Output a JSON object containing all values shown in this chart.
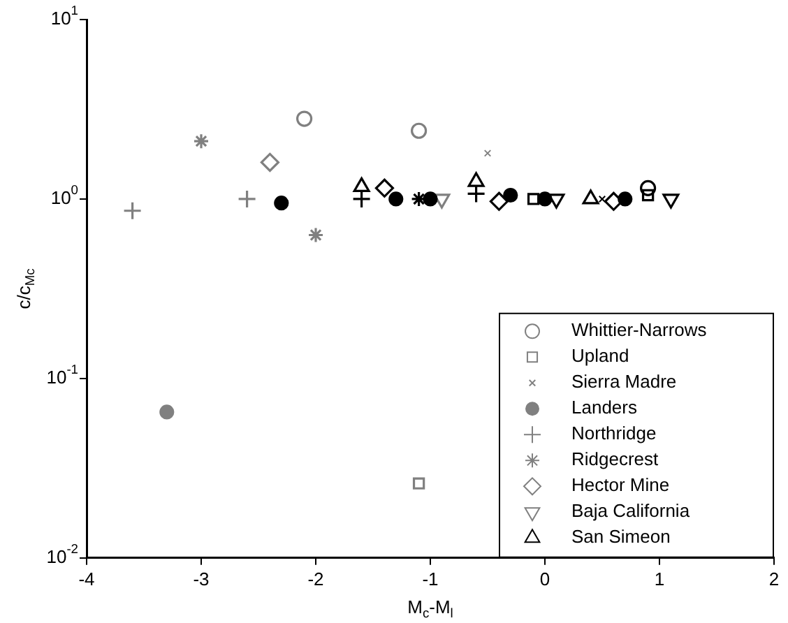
{
  "chart_data": {
    "type": "scatter",
    "xlabel": "M$_{c}$-M$_{l}$",
    "ylabel": "c/c$_{Mc}$",
    "log": "y",
    "xlim": [
      -4,
      2
    ],
    "xticks": [
      -4,
      -3,
      -2,
      -1,
      0,
      1,
      2
    ],
    "ylim": [
      0.01,
      10
    ],
    "yticks": [
      {
        "value": 0.01,
        "label": "10$^{-2}$"
      },
      {
        "value": 0.1,
        "label": "10$^{-1}$"
      },
      {
        "value": 1,
        "label": "10$^{0}$"
      },
      {
        "value": 10,
        "label": "10$^{1}$"
      }
    ],
    "grid": false,
    "legend": "bottom right",
    "series": [
      {
        "name": "Whittier-Narrows",
        "color": "#808080",
        "marker": "circle",
        "x": [
          -2.1,
          -1.1,
          0.9
        ],
        "values": [
          2.8,
          2.4,
          1.15
        ],
        "colors": [
          "#808080",
          "#808080",
          "#000000"
        ]
      },
      {
        "name": "Upland",
        "color": "#808080",
        "marker": "square",
        "x": [
          -1.1,
          -0.1,
          0.9
        ],
        "values": [
          0.026,
          1.0,
          1.05
        ],
        "colors": [
          "#808080",
          "#000000",
          "#000000"
        ]
      },
      {
        "name": "Sierra Madre",
        "color": "#808080",
        "marker": "x",
        "x": [
          -0.5,
          0.5
        ],
        "values": [
          1.8,
          1.0
        ],
        "colors": [
          "#808080",
          "#000000"
        ]
      },
      {
        "name": "Landers",
        "color": "#808080",
        "marker": "filled-circle",
        "x": [
          -3.3,
          -2.3,
          -1.3,
          -1.0,
          -0.3,
          0.0,
          0.7
        ],
        "values": [
          0.065,
          0.95,
          1.0,
          1.0,
          1.05,
          1.0,
          1.0
        ],
        "colors": [
          "#808080",
          "#000000",
          "#000000",
          "#000000",
          "#000000",
          "#000000",
          "#000000"
        ]
      },
      {
        "name": "Northridge",
        "color": "#808080",
        "marker": "cross",
        "x": [
          -3.6,
          -2.6,
          -1.6,
          -0.6
        ],
        "values": [
          0.86,
          1.0,
          1.0,
          1.07
        ],
        "colors": [
          "#808080",
          "#808080",
          "#000000",
          "#000000"
        ]
      },
      {
        "name": "Ridgecrest",
        "color": "#808080",
        "x": [
          -3.0,
          -2.0,
          -1.1
        ],
        "values": [
          2.1,
          0.63,
          1.0
        ],
        "colors": [
          "#808080",
          "#808080",
          "#000000"
        ]
      },
      {
        "name": "Hector Mine",
        "color": "#808080",
        "marker": "diamond",
        "x": [
          -2.4,
          -1.4,
          -0.4,
          0.6
        ],
        "values": [
          1.6,
          1.15,
          0.97,
          0.97
        ],
        "colors": [
          "#808080",
          "#000000",
          "#000000",
          "#000000"
        ]
      },
      {
        "name": "Baja California",
        "color": "#808080",
        "marker": "triangle-down",
        "x": [
          -0.9,
          0.1,
          1.1
        ],
        "values": [
          1.0,
          1.0,
          1.0
        ],
        "colors": [
          "#808080",
          "#000000",
          "#000000"
        ]
      },
      {
        "name": "San Simeon",
        "color": "#000000",
        "marker": "triangle",
        "x": [
          -1.6,
          -0.6,
          0.4
        ],
        "values": [
          1.17,
          1.25,
          1.0
        ],
        "colors": [
          "#000000",
          "#000000",
          "#000000"
        ]
      }
    ]
  }
}
